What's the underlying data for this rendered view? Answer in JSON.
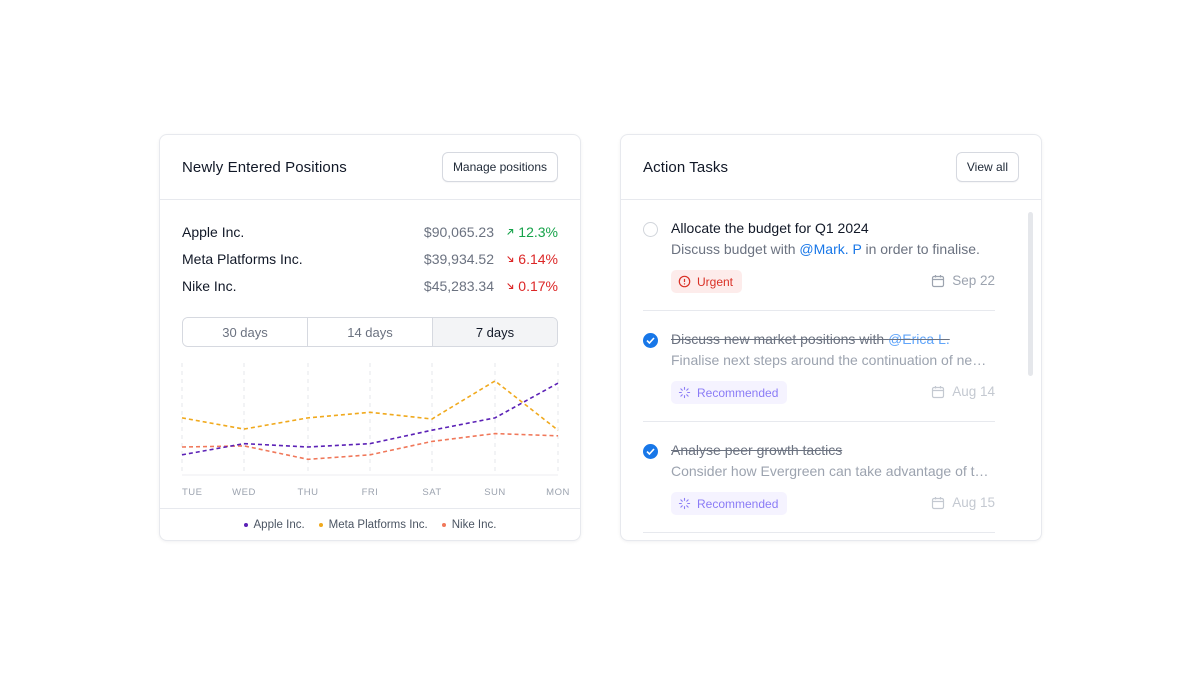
{
  "positions": {
    "title": "Newly Entered Positions",
    "manage_button": "Manage positions",
    "rows": [
      {
        "name": "Apple Inc.",
        "price": "$90,065.23",
        "change": "12.3%",
        "direction": "up"
      },
      {
        "name": "Meta Platforms Inc.",
        "price": "$39,934.52",
        "change": "6.14%",
        "direction": "down"
      },
      {
        "name": "Nike Inc.",
        "price": "$45,283.34",
        "change": "0.17%",
        "direction": "down"
      }
    ],
    "ranges": [
      "30 days",
      "14 days",
      "7 days"
    ],
    "active_range": "7 days",
    "colors": {
      "up": "#16a34a",
      "down": "#dc2626"
    }
  },
  "chart_data": {
    "type": "line",
    "x": [
      "TUE",
      "WED",
      "THU",
      "FRI",
      "SAT",
      "SUN",
      "MON"
    ],
    "ylim": [
      0,
      100
    ],
    "grid": "vertical dashed",
    "legend_position": "bottom",
    "series": [
      {
        "name": "Apple Inc.",
        "color": "#5b21b6",
        "values": [
          18,
          28,
          25,
          28,
          40,
          51,
          82
        ]
      },
      {
        "name": "Meta Platforms Inc.",
        "color": "#f0a91d",
        "values": [
          51,
          41,
          51,
          56,
          50,
          84,
          40
        ]
      },
      {
        "name": "Nike Inc.",
        "color": "#f0785a",
        "values": [
          25,
          26,
          14,
          18,
          30,
          37,
          35
        ]
      }
    ]
  },
  "tasks": {
    "title": "Action Tasks",
    "view_all_button": "View all",
    "items": [
      {
        "title": "Allocate the budget for Q1 2024",
        "desc_before": "Discuss budget with ",
        "mention": "@Mark. P",
        "desc_after": " in order to finalise.",
        "badge": "Urgent",
        "badge_type": "urgent",
        "badge_icon": "alert-circle-icon",
        "date": "Sep 22",
        "done": false
      },
      {
        "title_before": "Discuss new market positions with ",
        "title_mention": "@Erica L.",
        "desc_before": "Finalise next steps around the continuation of newly opened positions",
        "badge": "Recommended",
        "badge_type": "recommended",
        "badge_icon": "loader-icon",
        "date": "Aug 14",
        "done": true
      },
      {
        "title": "Analyse peer growth tactics",
        "desc_before": "Consider how Evergreen can take advantage of tactics used by peers",
        "badge": "Recommended",
        "badge_type": "recommended",
        "badge_icon": "loader-icon",
        "date": "Aug 15",
        "done": true
      }
    ],
    "accent": "#1877e8"
  }
}
